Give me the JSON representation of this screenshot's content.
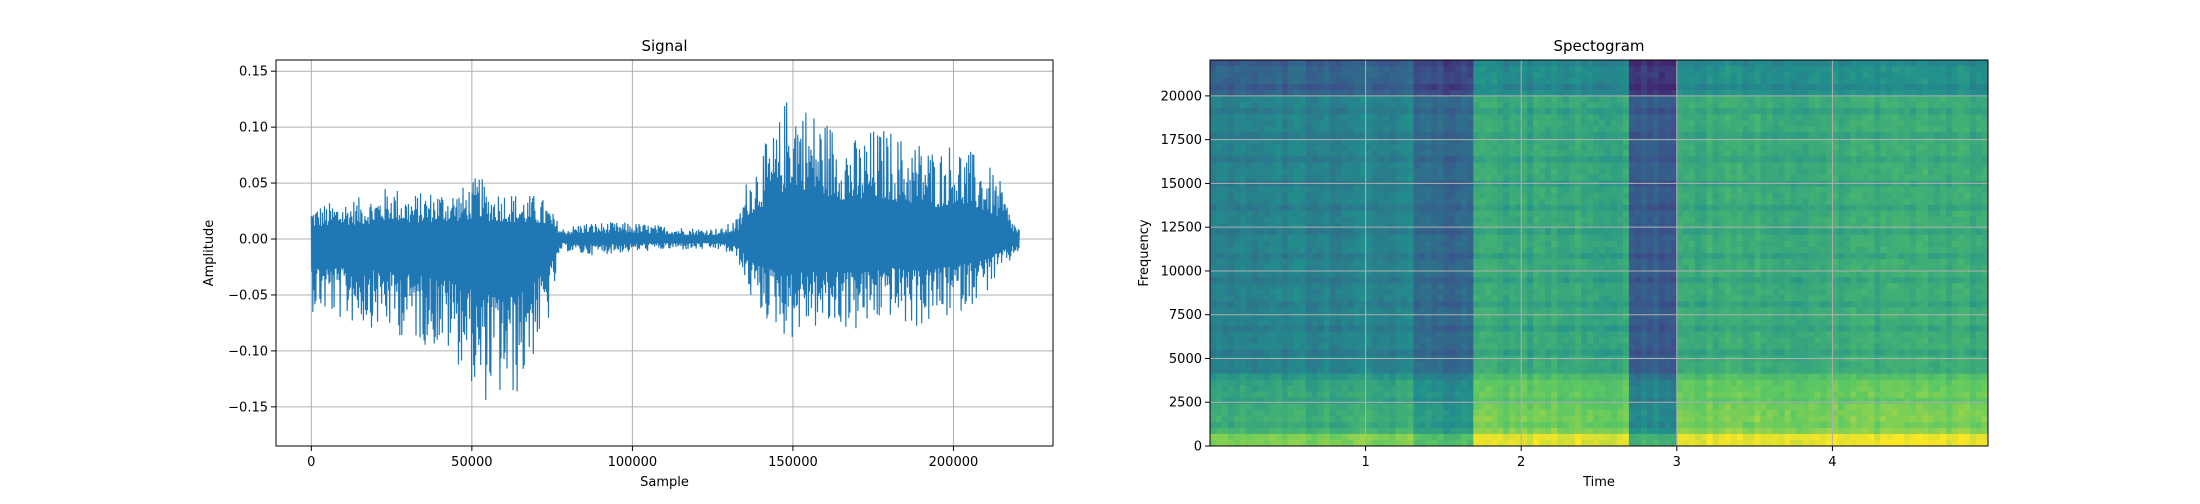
{
  "colors": {
    "line": "#1f77b4",
    "grid": "#b0b0b0",
    "axes": "#000000",
    "spectrogram_low": "#2a788e",
    "spectrogram_mid": "#3fbc73",
    "spectrogram_high": "#d8e219",
    "spectrogram_dark": "#2c6f8e"
  },
  "chart_data": [
    {
      "type": "line",
      "title": "Signal",
      "xlabel": "Sample",
      "ylabel": "Amplitude",
      "xlim": [
        -11000,
        231000
      ],
      "ylim": [
        -0.185,
        0.16
      ],
      "xticks": [
        0,
        50000,
        100000,
        150000,
        200000
      ],
      "xtick_labels": [
        "0",
        "50000",
        "100000",
        "150000",
        "200000"
      ],
      "yticks": [
        -0.15,
        -0.1,
        -0.05,
        0.0,
        0.05,
        0.1,
        0.15
      ],
      "ytick_labels": [
        "−0.15",
        "−0.10",
        "−0.05",
        "0.00",
        "0.05",
        "0.10",
        "0.15"
      ],
      "grid": true,
      "series": [
        {
          "envelope_x": [
            0,
            10000,
            20000,
            25000,
            30000,
            40000,
            45000,
            50000,
            52000,
            55000,
            60000,
            65000,
            70000,
            73000,
            78000,
            85000,
            100000,
            110000,
            120000,
            128000,
            133000,
            136000,
            140000,
            145000,
            148000,
            150000,
            155000,
            160000,
            165000,
            170000,
            175000,
            180000,
            185000,
            190000,
            195000,
            200000,
            205000,
            210000,
            215000,
            218000,
            220500
          ],
          "envelope_max": [
            0.03,
            0.035,
            0.04,
            0.05,
            0.04,
            0.045,
            0.045,
            0.05,
            0.06,
            0.045,
            0.045,
            0.04,
            0.04,
            0.035,
            0.01,
            0.015,
            0.015,
            0.012,
            0.01,
            0.01,
            0.02,
            0.06,
            0.08,
            0.1,
            0.13,
            0.14,
            0.12,
            0.11,
            0.1,
            0.09,
            0.1,
            0.1,
            0.09,
            0.09,
            0.08,
            0.09,
            0.08,
            0.07,
            0.05,
            0.02,
            0.01
          ],
          "envelope_min": [
            -0.065,
            -0.075,
            -0.08,
            -0.085,
            -0.09,
            -0.1,
            -0.11,
            -0.13,
            -0.17,
            -0.14,
            -0.15,
            -0.14,
            -0.1,
            -0.09,
            -0.01,
            -0.015,
            -0.012,
            -0.01,
            -0.01,
            -0.01,
            -0.02,
            -0.05,
            -0.07,
            -0.08,
            -0.09,
            -0.09,
            -0.08,
            -0.085,
            -0.08,
            -0.085,
            -0.08,
            -0.07,
            -0.08,
            -0.08,
            -0.075,
            -0.07,
            -0.06,
            -0.05,
            -0.03,
            -0.02,
            -0.01
          ]
        }
      ]
    },
    {
      "type": "heatmap",
      "title": "Spectogram",
      "xlabel": "Time",
      "ylabel": "Frequency",
      "xlim": [
        0,
        5
      ],
      "ylim": [
        0,
        22050
      ],
      "xticks": [
        1,
        2,
        3,
        4
      ],
      "xtick_labels": [
        "1",
        "2",
        "3",
        "4"
      ],
      "yticks": [
        0,
        2500,
        5000,
        7500,
        10000,
        12500,
        15000,
        17500,
        20000
      ],
      "ytick_labels": [
        "0",
        "2500",
        "5000",
        "7500",
        "10000",
        "12500",
        "15000",
        "17500",
        "20000"
      ],
      "grid": true,
      "colormap": "viridis",
      "time_segments": [
        {
          "t": [
            0.0,
            1.3
          ],
          "level": 0.45
        },
        {
          "t": [
            1.3,
            1.7
          ],
          "level": 0.35
        },
        {
          "t": [
            1.7,
            2.7
          ],
          "level": 0.6
        },
        {
          "t": [
            2.7,
            3.0
          ],
          "level": 0.3
        },
        {
          "t": [
            3.0,
            5.0
          ],
          "level": 0.62
        }
      ]
    }
  ]
}
